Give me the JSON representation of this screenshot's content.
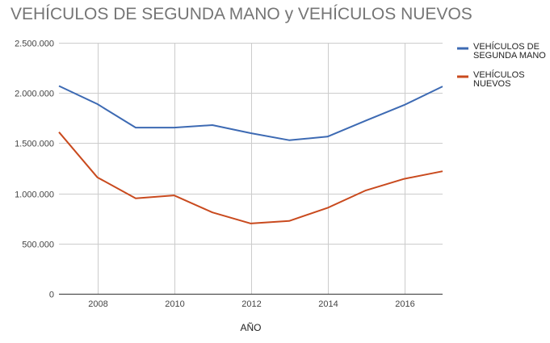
{
  "chart_data": {
    "type": "line",
    "title": "VEHÍCULOS DE SEGUNDA MANO y VEHÍCULOS NUEVOS",
    "xlabel": "AÑO",
    "ylabel": "",
    "x": [
      2007,
      2008,
      2009,
      2010,
      2011,
      2012,
      2013,
      2014,
      2015,
      2016,
      2017
    ],
    "xlim": [
      2007,
      2017
    ],
    "xticks": [
      2008,
      2010,
      2012,
      2014,
      2016
    ],
    "ylim": [
      0,
      2500000
    ],
    "yticks": [
      0,
      500000,
      1000000,
      1500000,
      2000000,
      2500000
    ],
    "ytick_labels": [
      "0",
      "500.000",
      "1.000.000",
      "1.500.000",
      "2.000.000",
      "2.500.000"
    ],
    "grid": true,
    "legend_position": "right",
    "series": [
      {
        "name": "VEHÍCULOS DE SEGUNDA MANO",
        "name_lines": [
          "VEHÍCULOS DE",
          "SEGUNDA MANO"
        ],
        "color": "#3d6ab3",
        "values": [
          2070000,
          1890000,
          1655000,
          1655000,
          1680000,
          1600000,
          1530000,
          1565000,
          1725000,
          1880000,
          2065000
        ]
      },
      {
        "name": "VEHÍCULOS NUEVOS",
        "name_lines": [
          "VEHÍCULOS",
          "NUEVOS"
        ],
        "color": "#c94a1e",
        "values": [
          1610000,
          1160000,
          950000,
          980000,
          810000,
          700000,
          725000,
          855000,
          1030000,
          1145000,
          1220000
        ]
      }
    ]
  }
}
